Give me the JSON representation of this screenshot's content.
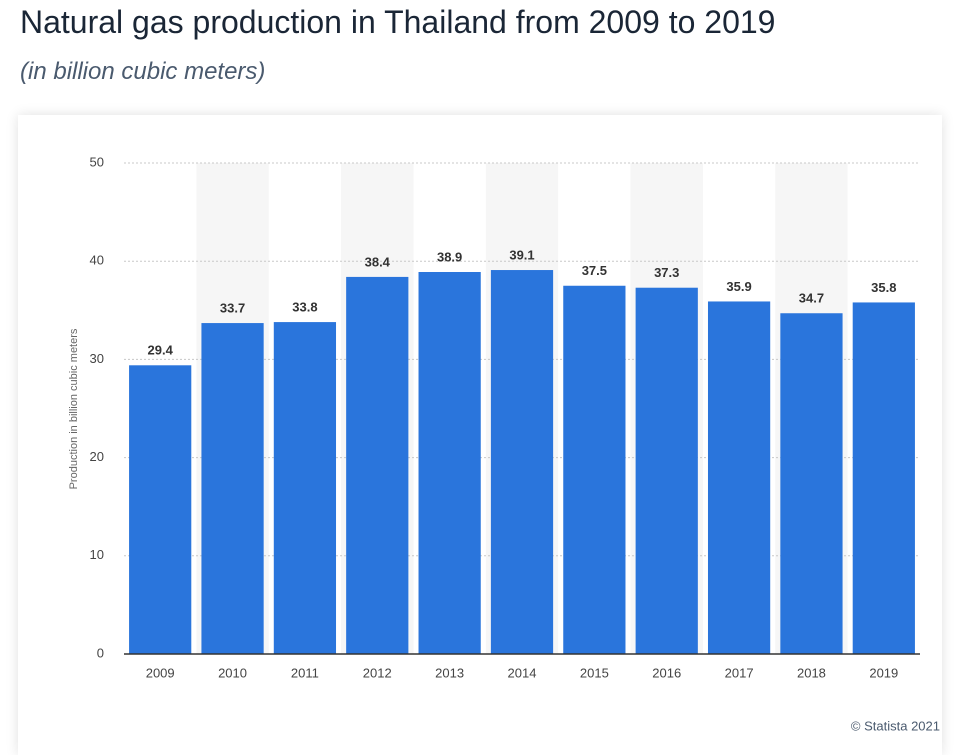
{
  "chart_data": {
    "type": "bar",
    "title": "Natural gas production in Thailand from 2009 to 2019",
    "subtitle": "(in billion cubic meters)",
    "y_label": "Production in billion cubic meters",
    "categories": [
      "2009",
      "2010",
      "2011",
      "2012",
      "2013",
      "2014",
      "2015",
      "2016",
      "2017",
      "2018",
      "2019"
    ],
    "values": [
      29.4,
      33.7,
      33.8,
      38.4,
      38.9,
      39.1,
      37.5,
      37.3,
      35.9,
      34.7,
      35.8
    ],
    "color": "#2a75dc",
    "ylim": [
      0,
      50
    ],
    "yticks": [
      0,
      10,
      20,
      30,
      40,
      50
    ],
    "grid": true,
    "credit": "© Statista 2021"
  }
}
